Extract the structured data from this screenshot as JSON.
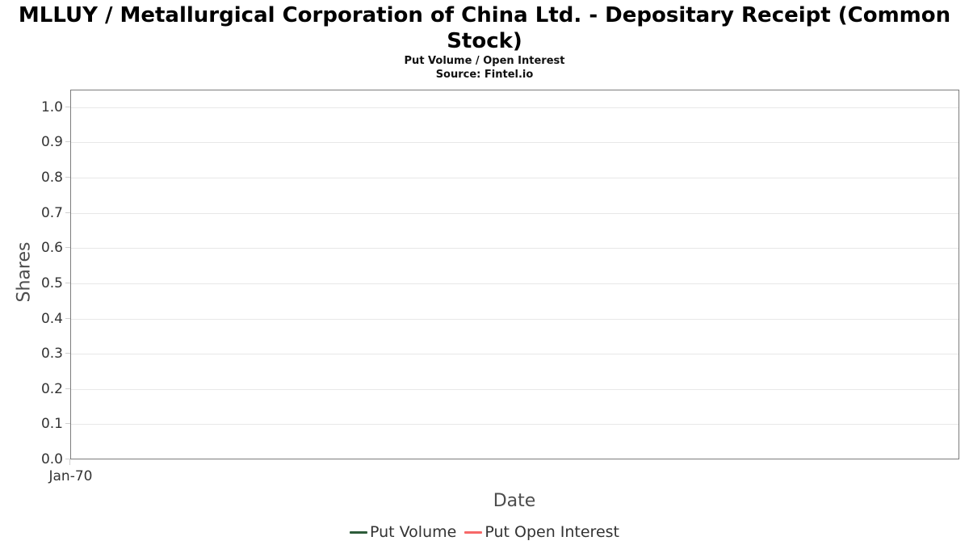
{
  "header": {
    "title_line1": "MLLUY / Metallurgical Corporation of China Ltd. - Depositary Receipt (Common",
    "title_line2": "Stock)",
    "subtitle": "Put Volume / Open Interest",
    "source": "Source: Fintel.io"
  },
  "chart_data": {
    "type": "line",
    "title": "MLLUY / Metallurgical Corporation of China Ltd. - Depositary Receipt (Common Stock)",
    "subtitle": "Put Volume / Open Interest",
    "source": "Source: Fintel.io",
    "xlabel": "Date",
    "ylabel": "Shares",
    "x_ticks": [
      "Jan-70"
    ],
    "y_ticks": [
      "0.0",
      "0.1",
      "0.2",
      "0.3",
      "0.4",
      "0.5",
      "0.6",
      "0.7",
      "0.8",
      "0.9",
      "1.0"
    ],
    "ylim": [
      0,
      1.05
    ],
    "grid": true,
    "legend_position": "bottom",
    "series": [
      {
        "name": "Put Volume",
        "color": "#2d5c3a",
        "x": [],
        "values": []
      },
      {
        "name": "Put Open Interest",
        "color": "#f76868",
        "x": [],
        "values": []
      }
    ]
  },
  "colors": {
    "plot_border": "#7c7c7c",
    "gridline": "#e8e8e8",
    "tick_mark": "#cfcfcf",
    "tick_label": "#333333",
    "axis_title": "#4d4d4d",
    "title": "#000000",
    "background": "#ffffff"
  }
}
